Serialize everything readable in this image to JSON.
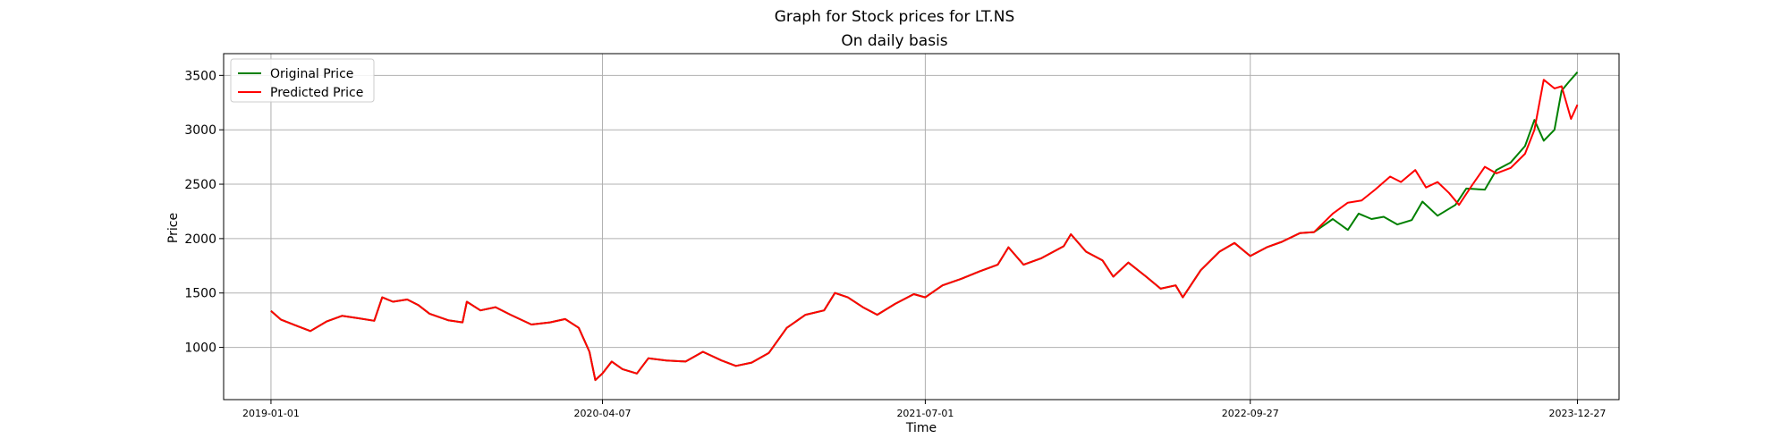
{
  "chart_data": {
    "type": "line",
    "suptitle": "Graph for Stock prices for LT.NS",
    "title": "On daily basis",
    "xlabel": "Time",
    "ylabel": "Price",
    "x_type": "date",
    "xlim": [
      "2018-10-27",
      "2024-02-23"
    ],
    "ylim": [
      520,
      3700
    ],
    "x_ticks": [
      "2019-01-01",
      "2020-04-07",
      "2021-07-01",
      "2022-09-27",
      "2023-12-27"
    ],
    "y_ticks": [
      1000,
      1500,
      2000,
      2500,
      3000,
      3500
    ],
    "grid": true,
    "legend_position": "upper-left",
    "series": [
      {
        "name": "Original Price",
        "color": "#008000",
        "points": [
          [
            "2019-01-01",
            1335
          ],
          [
            "2019-01-15",
            1255
          ],
          [
            "2019-02-05",
            1200
          ],
          [
            "2019-02-25",
            1150
          ],
          [
            "2019-03-20",
            1240
          ],
          [
            "2019-04-10",
            1290
          ],
          [
            "2019-05-01",
            1270
          ],
          [
            "2019-05-25",
            1245
          ],
          [
            "2019-06-05",
            1460
          ],
          [
            "2019-06-20",
            1420
          ],
          [
            "2019-07-10",
            1440
          ],
          [
            "2019-07-25",
            1390
          ],
          [
            "2019-08-10",
            1310
          ],
          [
            "2019-09-05",
            1250
          ],
          [
            "2019-09-25",
            1230
          ],
          [
            "2019-10-01",
            1420
          ],
          [
            "2019-10-20",
            1340
          ],
          [
            "2019-11-10",
            1370
          ],
          [
            "2019-12-01",
            1300
          ],
          [
            "2019-12-30",
            1210
          ],
          [
            "2020-01-25",
            1230
          ],
          [
            "2020-02-15",
            1260
          ],
          [
            "2020-03-05",
            1180
          ],
          [
            "2020-03-20",
            960
          ],
          [
            "2020-03-28",
            700
          ],
          [
            "2020-04-07",
            760
          ],
          [
            "2020-04-20",
            870
          ],
          [
            "2020-05-05",
            800
          ],
          [
            "2020-05-25",
            760
          ],
          [
            "2020-06-10",
            900
          ],
          [
            "2020-07-05",
            880
          ],
          [
            "2020-08-01",
            870
          ],
          [
            "2020-08-25",
            960
          ],
          [
            "2020-09-20",
            880
          ],
          [
            "2020-10-10",
            830
          ],
          [
            "2020-11-01",
            860
          ],
          [
            "2020-11-25",
            950
          ],
          [
            "2020-12-20",
            1180
          ],
          [
            "2021-01-15",
            1300
          ],
          [
            "2021-02-10",
            1340
          ],
          [
            "2021-02-25",
            1500
          ],
          [
            "2021-03-15",
            1460
          ],
          [
            "2021-04-05",
            1370
          ],
          [
            "2021-04-25",
            1300
          ],
          [
            "2021-05-20",
            1400
          ],
          [
            "2021-06-15",
            1490
          ],
          [
            "2021-07-01",
            1460
          ],
          [
            "2021-07-25",
            1570
          ],
          [
            "2021-08-20",
            1630
          ],
          [
            "2021-09-15",
            1700
          ],
          [
            "2021-10-10",
            1760
          ],
          [
            "2021-10-25",
            1920
          ],
          [
            "2021-11-15",
            1760
          ],
          [
            "2021-12-10",
            1820
          ],
          [
            "2022-01-10",
            1930
          ],
          [
            "2022-01-20",
            2040
          ],
          [
            "2022-02-10",
            1880
          ],
          [
            "2022-03-05",
            1800
          ],
          [
            "2022-03-20",
            1650
          ],
          [
            "2022-04-10",
            1780
          ],
          [
            "2022-05-05",
            1650
          ],
          [
            "2022-05-25",
            1540
          ],
          [
            "2022-06-15",
            1570
          ],
          [
            "2022-06-25",
            1460
          ],
          [
            "2022-07-20",
            1710
          ],
          [
            "2022-08-15",
            1880
          ],
          [
            "2022-09-05",
            1960
          ],
          [
            "2022-09-27",
            1840
          ],
          [
            "2022-10-20",
            1920
          ],
          [
            "2022-11-10",
            1970
          ],
          [
            "2022-12-05",
            2050
          ],
          [
            "2022-12-25",
            2060
          ],
          [
            "2023-01-20",
            2180
          ],
          [
            "2023-02-10",
            2080
          ],
          [
            "2023-02-25",
            2230
          ],
          [
            "2023-03-15",
            2180
          ],
          [
            "2023-04-01",
            2200
          ],
          [
            "2023-04-20",
            2130
          ],
          [
            "2023-05-10",
            2170
          ],
          [
            "2023-05-25",
            2340
          ],
          [
            "2023-06-15",
            2210
          ],
          [
            "2023-07-10",
            2310
          ],
          [
            "2023-07-25",
            2460
          ],
          [
            "2023-08-20",
            2450
          ],
          [
            "2023-09-05",
            2630
          ],
          [
            "2023-09-25",
            2700
          ],
          [
            "2023-10-15",
            2850
          ],
          [
            "2023-10-28",
            3090
          ],
          [
            "2023-11-10",
            2900
          ],
          [
            "2023-11-25",
            3000
          ],
          [
            "2023-12-05",
            3360
          ],
          [
            "2023-12-15",
            3440
          ],
          [
            "2023-12-27",
            3530
          ]
        ]
      },
      {
        "name": "Predicted Price",
        "color": "#ff0000",
        "points": [
          [
            "2019-01-01",
            1335
          ],
          [
            "2019-01-15",
            1255
          ],
          [
            "2019-02-05",
            1200
          ],
          [
            "2019-02-25",
            1150
          ],
          [
            "2019-03-20",
            1240
          ],
          [
            "2019-04-10",
            1290
          ],
          [
            "2019-05-01",
            1270
          ],
          [
            "2019-05-25",
            1245
          ],
          [
            "2019-06-05",
            1460
          ],
          [
            "2019-06-20",
            1420
          ],
          [
            "2019-07-10",
            1440
          ],
          [
            "2019-07-25",
            1390
          ],
          [
            "2019-08-10",
            1310
          ],
          [
            "2019-09-05",
            1250
          ],
          [
            "2019-09-25",
            1230
          ],
          [
            "2019-10-01",
            1420
          ],
          [
            "2019-10-20",
            1340
          ],
          [
            "2019-11-10",
            1370
          ],
          [
            "2019-12-01",
            1300
          ],
          [
            "2019-12-30",
            1210
          ],
          [
            "2020-01-25",
            1230
          ],
          [
            "2020-02-15",
            1260
          ],
          [
            "2020-03-05",
            1180
          ],
          [
            "2020-03-20",
            960
          ],
          [
            "2020-03-28",
            700
          ],
          [
            "2020-04-07",
            760
          ],
          [
            "2020-04-20",
            870
          ],
          [
            "2020-05-05",
            800
          ],
          [
            "2020-05-25",
            760
          ],
          [
            "2020-06-10",
            900
          ],
          [
            "2020-07-05",
            880
          ],
          [
            "2020-08-01",
            870
          ],
          [
            "2020-08-25",
            960
          ],
          [
            "2020-09-20",
            880
          ],
          [
            "2020-10-10",
            830
          ],
          [
            "2020-11-01",
            860
          ],
          [
            "2020-11-25",
            950
          ],
          [
            "2020-12-20",
            1180
          ],
          [
            "2021-01-15",
            1300
          ],
          [
            "2021-02-10",
            1340
          ],
          [
            "2021-02-25",
            1500
          ],
          [
            "2021-03-15",
            1460
          ],
          [
            "2021-04-05",
            1370
          ],
          [
            "2021-04-25",
            1300
          ],
          [
            "2021-05-20",
            1400
          ],
          [
            "2021-06-15",
            1490
          ],
          [
            "2021-07-01",
            1460
          ],
          [
            "2021-07-25",
            1570
          ],
          [
            "2021-08-20",
            1630
          ],
          [
            "2021-09-15",
            1700
          ],
          [
            "2021-10-10",
            1760
          ],
          [
            "2021-10-25",
            1920
          ],
          [
            "2021-11-15",
            1760
          ],
          [
            "2021-12-10",
            1820
          ],
          [
            "2022-01-10",
            1930
          ],
          [
            "2022-01-20",
            2040
          ],
          [
            "2022-02-10",
            1880
          ],
          [
            "2022-03-05",
            1800
          ],
          [
            "2022-03-20",
            1650
          ],
          [
            "2022-04-10",
            1780
          ],
          [
            "2022-05-05",
            1650
          ],
          [
            "2022-05-25",
            1540
          ],
          [
            "2022-06-15",
            1570
          ],
          [
            "2022-06-25",
            1460
          ],
          [
            "2022-07-20",
            1710
          ],
          [
            "2022-08-15",
            1880
          ],
          [
            "2022-09-05",
            1960
          ],
          [
            "2022-09-27",
            1840
          ],
          [
            "2022-10-20",
            1920
          ],
          [
            "2022-11-10",
            1970
          ],
          [
            "2022-12-05",
            2050
          ],
          [
            "2022-12-25",
            2060
          ],
          [
            "2023-01-20",
            2230
          ],
          [
            "2023-02-10",
            2330
          ],
          [
            "2023-03-01",
            2350
          ],
          [
            "2023-03-20",
            2450
          ],
          [
            "2023-04-10",
            2570
          ],
          [
            "2023-04-25",
            2520
          ],
          [
            "2023-05-15",
            2630
          ],
          [
            "2023-05-30",
            2470
          ],
          [
            "2023-06-15",
            2520
          ],
          [
            "2023-07-01",
            2420
          ],
          [
            "2023-07-15",
            2310
          ],
          [
            "2023-08-01",
            2480
          ],
          [
            "2023-08-20",
            2660
          ],
          [
            "2023-09-05",
            2600
          ],
          [
            "2023-09-25",
            2650
          ],
          [
            "2023-10-15",
            2780
          ],
          [
            "2023-10-28",
            3000
          ],
          [
            "2023-11-10",
            3460
          ],
          [
            "2023-11-25",
            3380
          ],
          [
            "2023-12-05",
            3400
          ],
          [
            "2023-12-18",
            3100
          ],
          [
            "2023-12-27",
            3230
          ]
        ]
      }
    ]
  }
}
